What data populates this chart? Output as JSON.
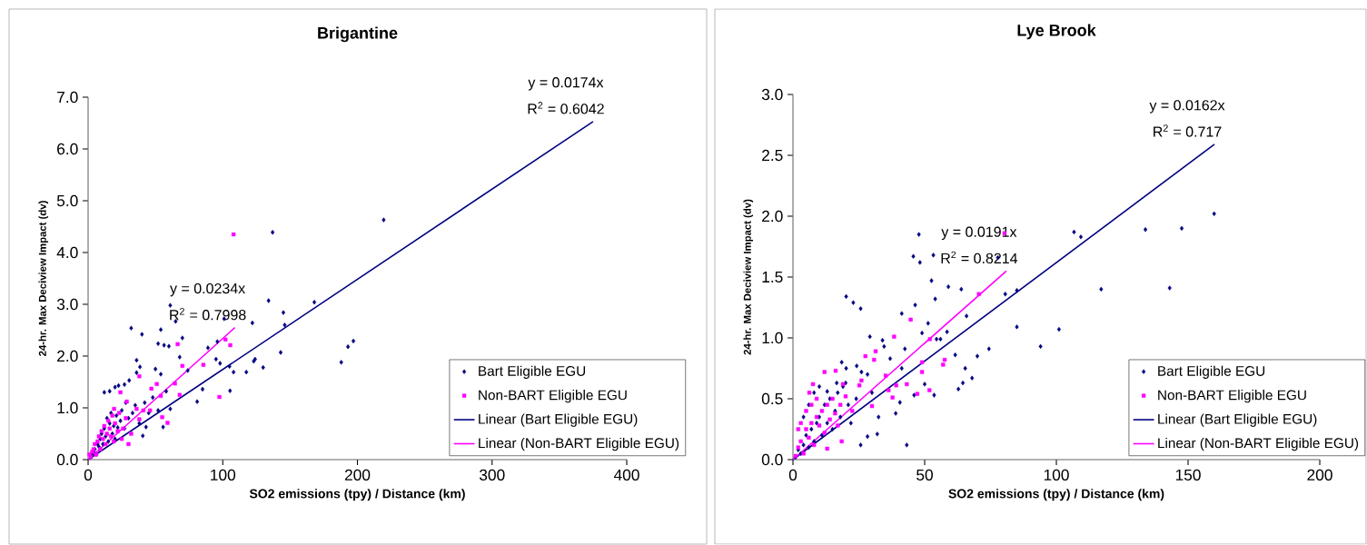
{
  "chart_data": [
    {
      "type": "scatter",
      "title": "Brigantine",
      "xlabel": "SO2 emissions (tpy) / Distance (km)",
      "ylabel": "24-hr. Max Deciview Impact (dv)",
      "xlim": [
        0,
        400
      ],
      "ylim": [
        0,
        7
      ],
      "xticks": [
        0,
        100,
        200,
        300,
        400
      ],
      "yticks": [
        {
          "value": 0,
          "label": "0.0"
        },
        {
          "value": 1,
          "label": "1.0"
        },
        {
          "value": 2,
          "label": "2.0"
        },
        {
          "value": 3,
          "label": "3.0"
        },
        {
          "value": 4,
          "label": "4.0"
        },
        {
          "value": 5,
          "label": "5.0"
        },
        {
          "value": 6,
          "label": "6.0"
        },
        {
          "value": 7,
          "label": "7.0"
        }
      ],
      "legend": "bottom right",
      "series": [
        {
          "name": "Bart Eligible EGU",
          "type": "scatter",
          "marker": "diamond",
          "color": "#000080",
          "x": [
            137,
            219.5,
            61,
            134,
            168,
            101,
            32,
            40,
            54,
            65,
            145,
            146,
            122,
            70,
            52,
            56.4,
            60,
            188,
            193,
            197,
            143,
            123,
            124,
            130,
            117.5,
            105,
            108,
            105.4,
            96,
            95,
            98,
            89,
            85,
            81,
            74,
            68,
            50,
            54,
            36,
            38.5,
            36,
            30.5,
            27,
            22.6,
            16,
            58,
            61,
            55.7,
            52,
            43,
            40.6,
            2,
            3,
            4,
            5,
            6,
            7,
            8,
            9,
            10,
            11,
            12,
            13,
            14,
            15,
            16,
            17,
            18,
            19,
            20,
            21,
            22,
            24,
            25,
            27,
            28,
            30,
            33,
            35,
            38,
            42,
            45,
            48,
            12,
            20
          ],
          "values": [
            4.39,
            4.63,
            2.98,
            3.07,
            3.04,
            2.72,
            2.54,
            2.42,
            2.51,
            2.67,
            2.84,
            2.6,
            2.64,
            2.35,
            2.24,
            2.21,
            2.19,
            1.88,
            2.18,
            2.29,
            2.07,
            1.9,
            1.94,
            1.78,
            1.69,
            1.8,
            1.69,
            1.33,
            2.28,
            1.94,
            1.86,
            2.16,
            1.36,
            1.12,
            1.72,
            1.98,
            1.75,
            1.65,
            1.92,
            1.79,
            1.68,
            1.53,
            1.45,
            1.43,
            1.32,
            1.32,
            0.98,
            0.63,
            0.95,
            0.63,
            0.46,
            0.05,
            0.1,
            0.15,
            0.2,
            0.1,
            0.3,
            0.25,
            0.4,
            0.5,
            0.3,
            0.6,
            0.45,
            0.8,
            0.35,
            0.7,
            0.9,
            0.5,
            0.65,
            0.4,
            0.85,
            0.62,
            0.75,
            0.95,
            0.6,
            1.1,
            0.8,
            0.9,
            1.05,
            0.7,
            1.1,
            0.9,
            1.2,
            1.3,
            1.4
          ]
        },
        {
          "name": "Non-BART Eligible EGU",
          "type": "scatter",
          "marker": "square",
          "color": "#ff00ff",
          "x": [
            108,
            66.5,
            102,
            105.6,
            85.6,
            70,
            97.5,
            64.5,
            68,
            51,
            47,
            54,
            38,
            24,
            28.7,
            36,
            41,
            46,
            55,
            59,
            38,
            19.3,
            1,
            2,
            3,
            4,
            5,
            6,
            7,
            8,
            9,
            10,
            11,
            12,
            13,
            14,
            15,
            16,
            17,
            18,
            19,
            20,
            22,
            23,
            25,
            26,
            28,
            30,
            32
          ],
          "values": [
            4.35,
            2.23,
            2.32,
            2.21,
            1.83,
            1.81,
            1.21,
            1.47,
            1.25,
            1.46,
            1.37,
            1.23,
            1.61,
            1.3,
            1.12,
            0.98,
            0.95,
            0.95,
            0.82,
            0.71,
            0.78,
            0.98,
            0.1,
            0.05,
            0.15,
            0.2,
            0.3,
            0.1,
            0.35,
            0.45,
            0.2,
            0.55,
            0.4,
            0.65,
            0.3,
            0.5,
            0.75,
            0.6,
            0.45,
            0.85,
            0.35,
            0.7,
            0.55,
            0.9,
            0.4,
            0.6,
            0.8,
            0.3,
            0.5
          ]
        },
        {
          "name": "Linear (Bart Eligible EGU)",
          "type": "line",
          "color": "#000080",
          "x": [
            0,
            375
          ],
          "values": [
            0,
            6.53
          ]
        },
        {
          "name": "Linear (Non-BART Eligible EGU)",
          "type": "line",
          "color": "#ff00ff",
          "x": [
            0,
            109
          ],
          "values": [
            0,
            2.55
          ]
        }
      ],
      "annotations": [
        {
          "text": "y = 0.0174x",
          "x": 375,
          "y": 6.53
        },
        {
          "text": "R$^{2}$ = 0.6042",
          "x": 375,
          "y": 6.53
        },
        {
          "text": "y = 0.0234x",
          "x": 109,
          "y": 2.55
        },
        {
          "text": "R$^{2}$ = 0.7998",
          "x": 109,
          "y": 2.55
        }
      ]
    },
    {
      "type": "scatter",
      "title": "Lye Brook",
      "xlabel": "SO2 emissions (tpy) / Distance (km)",
      "ylabel": "24-hr. Max Deciview Impact (dv)",
      "xlim": [
        0,
        200
      ],
      "ylim": [
        0,
        3
      ],
      "xticks": [
        0,
        50,
        100,
        150,
        200
      ],
      "yticks": [
        {
          "value": 0,
          "label": "0.0"
        },
        {
          "value": 0.5,
          "label": "0.5"
        },
        {
          "value": 1,
          "label": "1.0"
        },
        {
          "value": 1.5,
          "label": "1.5"
        },
        {
          "value": 2,
          "label": "2.0"
        },
        {
          "value": 2.5,
          "label": "2.5"
        },
        {
          "value": 3,
          "label": "3.0"
        }
      ],
      "legend": "bottom right",
      "series": [
        {
          "name": "Bart Eligible EGU",
          "type": "scatter",
          "marker": "diamond",
          "color": "#000080",
          "x": [
            47.8,
            45.7,
            48.2,
            53.3,
            77.8,
            52.6,
            59,
            63.9,
            54,
            80.6,
            85,
            20.2,
            22.9,
            25.7,
            41.3,
            46.4,
            51.3,
            65.9,
            85,
            101,
            94,
            74.4,
            70,
            49,
            58.5,
            54.5,
            56,
            61.6,
            65.4,
            68,
            64.5,
            62.8,
            42.5,
            36.9,
            41.3,
            50,
            53.6,
            46,
            40.6,
            39,
            43.2,
            32.5,
            32,
            28.3,
            25.7,
            29.2,
            34,
            34.6,
            18.5,
            20.2,
            24.2,
            28.3,
            16.6,
            13,
            20,
            106.7,
            109.3,
            133.8,
            147.6,
            159.9,
            117,
            143,
            1,
            2,
            3,
            4,
            5,
            6,
            7,
            8,
            9,
            10,
            11,
            12,
            13,
            14,
            15,
            16,
            17,
            18,
            19,
            21,
            22,
            24,
            26,
            30,
            6,
            8,
            10,
            4
          ],
          "values": [
            1.85,
            1.67,
            1.62,
            1.68,
            1.66,
            1.47,
            1.42,
            1.4,
            1.32,
            1.36,
            1.39,
            1.34,
            1.29,
            1.24,
            1.2,
            1.27,
            1.12,
            1.18,
            1.09,
            1.07,
            0.93,
            0.91,
            0.85,
            1.04,
            1.05,
            0.99,
            0.99,
            0.86,
            0.75,
            0.67,
            0.63,
            0.58,
            0.91,
            0.83,
            0.75,
            0.62,
            0.53,
            0.53,
            0.47,
            0.38,
            0.12,
            0.35,
            0.21,
            0.19,
            0.12,
            1.01,
            0.98,
            0.93,
            0.8,
            0.75,
            0.77,
            0.7,
            0.63,
            0.56,
            0.63,
            1.87,
            1.83,
            1.89,
            1.9,
            2.02,
            1.4,
            1.41,
            0.02,
            0.08,
            0.05,
            0.12,
            0.2,
            0.1,
            0.25,
            0.15,
            0.3,
            0.35,
            0.2,
            0.45,
            0.3,
            0.5,
            0.25,
            0.4,
            0.55,
            0.35,
            0.6,
            0.45,
            0.3,
            0.5,
            0.72,
            0.55,
            0.45,
            0.55,
            0.6,
            0.35
          ]
        },
        {
          "name": "Non-BART Eligible EGU",
          "type": "scatter",
          "marker": "square",
          "color": "#ff00ff",
          "x": [
            80.3,
            70.6,
            44.7,
            38.4,
            31.4,
            30.8,
            27.5,
            52,
            49,
            49,
            57.6,
            57,
            35.2,
            39.2,
            43.2,
            36.3,
            37.8,
            47.2,
            51.8,
            12,
            16.2,
            7.6,
            6.2,
            26,
            25.2,
            19,
            30,
            22.5,
            18.5,
            13,
            1,
            2,
            3,
            4,
            5,
            6,
            7,
            8,
            9,
            10,
            11,
            12,
            13,
            14,
            15,
            16,
            17,
            18,
            20,
            3,
            5,
            7,
            2,
            9
          ],
          "values": [
            1.86,
            1.36,
            1.15,
            1.01,
            0.89,
            0.82,
            0.85,
            0.99,
            0.8,
            0.72,
            0.82,
            0.78,
            0.69,
            0.61,
            0.62,
            0.57,
            0.51,
            0.54,
            0.57,
            0.72,
            0.73,
            0.62,
            0.55,
            0.65,
            0.61,
            0.62,
            0.44,
            0.4,
            0.15,
            0.09,
            0.03,
            0.1,
            0.15,
            0.05,
            0.25,
            0.18,
            0.3,
            0.12,
            0.35,
            0.28,
            0.4,
            0.22,
            0.45,
            0.33,
            0.5,
            0.38,
            0.28,
            0.45,
            0.52,
            0.3,
            0.4,
            0.45,
            0.25,
            0.5
          ]
        },
        {
          "name": "Linear (Bart Eligible EGU)",
          "type": "line",
          "color": "#000080",
          "x": [
            0,
            160
          ],
          "values": [
            0,
            2.59
          ]
        },
        {
          "name": "Linear (Non-BART Eligible EGU)",
          "type": "line",
          "color": "#ff00ff",
          "x": [
            0,
            81
          ],
          "values": [
            0,
            1.55
          ]
        }
      ],
      "annotations": [
        {
          "text": "y = 0.0162x",
          "x": 160,
          "y": 2.59
        },
        {
          "text": "R$^{2}$ = 0.717",
          "x": 160,
          "y": 2.59
        },
        {
          "text": "y = 0.0191x",
          "x": 81,
          "y": 1.55
        },
        {
          "text": "R$^{2}$ = 0.8214",
          "x": 81,
          "y": 1.55
        }
      ]
    }
  ]
}
